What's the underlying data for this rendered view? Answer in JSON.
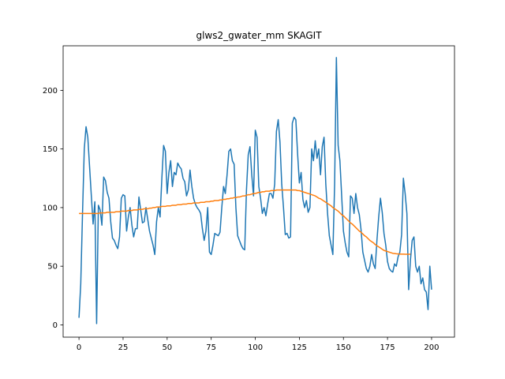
{
  "chart_data": {
    "type": "line",
    "title": "glws2_gwater_mm SKAGIT",
    "xlabel": "",
    "ylabel": "",
    "xlim": [
      -9,
      213
    ],
    "ylim": [
      -10.5,
      238
    ],
    "xticks": [
      0,
      25,
      50,
      75,
      100,
      125,
      150,
      175,
      200
    ],
    "yticks": [
      0,
      50,
      100,
      150,
      200
    ],
    "grid": false,
    "colors": {
      "series1": "#1f77b4",
      "series2": "#ff7f0e"
    },
    "series": [
      {
        "values": [
          6,
          35,
          95,
          150,
          169,
          160,
          135,
          110,
          86,
          105,
          1,
          102,
          98,
          85,
          126,
          123,
          113,
          108,
          88,
          74,
          72,
          68,
          65,
          75,
          108,
          111,
          110,
          80,
          92,
          100,
          85,
          75,
          82,
          82,
          109,
          98,
          87,
          88,
          100,
          90,
          80,
          74,
          68,
          60,
          88,
          100,
          92,
          125,
          153,
          148,
          112,
          130,
          140,
          118,
          130,
          128,
          138,
          135,
          133,
          125,
          122,
          110,
          115,
          132,
          118,
          108,
          103,
          100,
          98,
          95,
          82,
          72,
          80,
          100,
          62,
          60,
          68,
          78,
          77,
          76,
          79,
          100,
          118,
          112,
          128,
          148,
          150,
          140,
          137,
          100,
          76,
          72,
          68,
          65,
          64,
          115,
          145,
          152,
          128,
          110,
          166,
          160,
          118,
          108,
          95,
          100,
          93,
          103,
          112,
          112,
          108,
          120,
          165,
          175,
          156,
          120,
          100,
          77,
          78,
          74,
          75,
          172,
          177,
          175,
          146,
          121,
          130,
          107,
          100,
          106,
          96,
          100,
          150,
          140,
          157,
          142,
          150,
          128,
          152,
          160,
          120,
          95,
          76,
          68,
          60,
          120,
          228,
          153,
          140,
          110,
          80,
          70,
          62,
          58,
          110,
          108,
          95,
          112,
          100,
          94,
          81,
          62,
          55,
          48,
          45,
          50,
          60,
          52,
          48,
          72,
          92,
          108,
          96,
          78,
          68,
          54,
          48,
          46,
          45,
          52,
          50,
          58,
          62,
          77,
          125,
          112,
          95,
          30,
          55,
          72,
          75,
          50,
          45,
          50,
          35,
          40,
          30,
          28,
          13,
          50,
          30
        ]
      },
      {
        "values": [
          95,
          95,
          95,
          95,
          95,
          95,
          95,
          95,
          95,
          95,
          95,
          95,
          95.5,
          95.5,
          95.5,
          95.5,
          96,
          96,
          96,
          96,
          96,
          96.5,
          96.5,
          96.5,
          97,
          97,
          97,
          97,
          97.5,
          97.5,
          97.5,
          98,
          98,
          98,
          98.5,
          98.5,
          98.5,
          99,
          99,
          99,
          99.5,
          99.5,
          100,
          100,
          100.5,
          100.5,
          100.5,
          101,
          101,
          101,
          101.5,
          101.5,
          101.5,
          102,
          102,
          102,
          102.5,
          102.5,
          102.5,
          103,
          103,
          103,
          103.5,
          103.5,
          103.5,
          104,
          104,
          104,
          104,
          104.5,
          104.5,
          104.5,
          105,
          105,
          105,
          105.5,
          105.5,
          106,
          106,
          106,
          106.5,
          106.5,
          107,
          107,
          107.5,
          107.5,
          108,
          108,
          108.5,
          108.5,
          109,
          109,
          109.5,
          110,
          110,
          110.5,
          111,
          111,
          111.5,
          112,
          112,
          112.5,
          113,
          113,
          113.5,
          113.5,
          114,
          114,
          114,
          114.5,
          114.5,
          114.5,
          115,
          115,
          115,
          115,
          115,
          115,
          115,
          115,
          115,
          115,
          115,
          115,
          114.5,
          114.5,
          114,
          113.5,
          113,
          112.5,
          112,
          111.5,
          111,
          110.5,
          110,
          109,
          108,
          107.5,
          106.5,
          105.5,
          104.5,
          103.5,
          102.5,
          101.5,
          100,
          99,
          98,
          97,
          95.5,
          94,
          93,
          91.5,
          90,
          88.5,
          87,
          86,
          84.5,
          83,
          81.5,
          80,
          79,
          77.5,
          76,
          75,
          73.5,
          72,
          71,
          70,
          68.5,
          67.5,
          66.5,
          65.5,
          64.5,
          63.5,
          63,
          62.5,
          62,
          61.5,
          61,
          60.8,
          60.6,
          60.5,
          60.4,
          60.3,
          60.3,
          60.2,
          60.2,
          60.2,
          60.2
        ]
      }
    ]
  }
}
